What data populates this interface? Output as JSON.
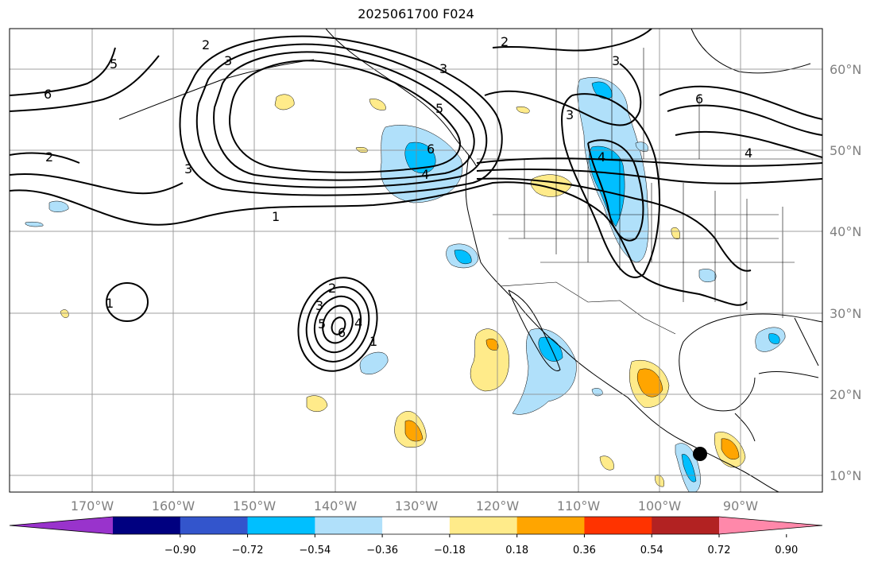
{
  "title": "2025061700 F024",
  "lon_labels": [
    "170°W",
    "160°W",
    "150°W",
    "140°W",
    "130°W",
    "120°W",
    "110°W",
    "100°W",
    "90°W"
  ],
  "lat_labels": [
    "60°N",
    "50°N",
    "40°N",
    "30°N",
    "20°N",
    "10°N"
  ],
  "colorbar": {
    "tick_labels": [
      "−0.90",
      "−0.72",
      "−0.54",
      "−0.36",
      "−0.18",
      "0.18",
      "0.36",
      "0.54",
      "0.72",
      "0.90"
    ],
    "colors": [
      "#9933cc",
      "#000080",
      "#3355cc",
      "#00bfff",
      "#b0e0fa",
      "#ffffff",
      "#ffeb8a",
      "#ffa500",
      "#ff3300",
      "#b22222",
      "#ff88aa"
    ]
  },
  "contour_labels": [
    {
      "id": "c6-left",
      "text": "6"
    },
    {
      "id": "c5-topleft",
      "text": "5"
    },
    {
      "id": "c2-topleft",
      "text": "2"
    },
    {
      "id": "c2-left",
      "text": "2"
    },
    {
      "id": "c3-left",
      "text": "3"
    },
    {
      "id": "c1-mid",
      "text": "1"
    },
    {
      "id": "c1-hi",
      "text": "1"
    },
    {
      "id": "c3-topmid",
      "text": "3"
    },
    {
      "id": "c3-top2",
      "text": "3"
    },
    {
      "id": "c5-mid",
      "text": "5"
    },
    {
      "id": "c6-coast",
      "text": "6"
    },
    {
      "id": "c4-coast",
      "text": "4"
    },
    {
      "id": "c2-top",
      "text": "2"
    },
    {
      "id": "c3-tr",
      "text": "3"
    },
    {
      "id": "c3-n",
      "text": "3"
    },
    {
      "id": "c4-rockies",
      "text": "4"
    },
    {
      "id": "c6-right",
      "text": "6"
    },
    {
      "id": "c4-right",
      "text": "4"
    },
    {
      "id": "c2-low",
      "text": "2"
    },
    {
      "id": "c3-low",
      "text": "3"
    },
    {
      "id": "c5-low",
      "text": "5"
    },
    {
      "id": "c4-low",
      "text": "4"
    },
    {
      "id": "c6-low",
      "text": "6"
    },
    {
      "id": "c1-low",
      "text": "1"
    }
  ],
  "marker": {
    "name": "storm-center-dot"
  }
}
